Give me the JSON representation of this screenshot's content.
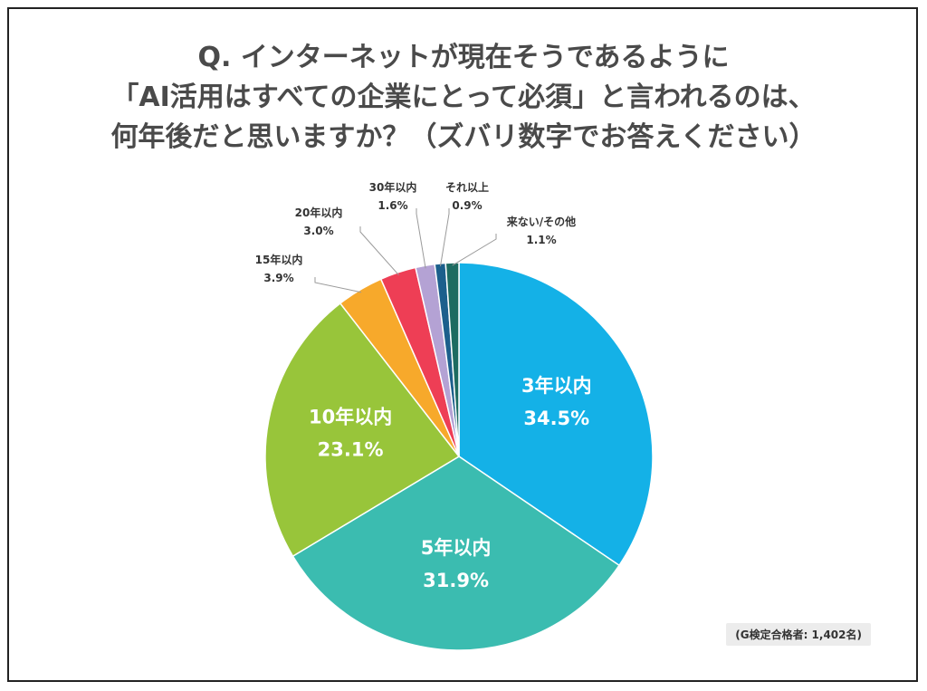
{
  "title_lines": [
    "Q. インターネットが現在そうであるように",
    "「AI活用はすべての企業にとって必須」と言われるのは、",
    "何年後だと思いますか？（ズバリ数字でお答えください）"
  ],
  "chart_data": {
    "type": "pie",
    "start_angle_deg": 0,
    "direction": "clockwise",
    "slices": [
      {
        "label": "3年以内",
        "value_text": "34.5%",
        "value": 34.5,
        "color": "#14b1e7",
        "label_inside": true
      },
      {
        "label": "5年以内",
        "value_text": "31.9%",
        "value": 31.9,
        "color": "#3bbcb0",
        "label_inside": true
      },
      {
        "label": "10年以内",
        "value_text": "23.1%",
        "value": 23.1,
        "color": "#98c53a",
        "label_inside": true
      },
      {
        "label": "15年以内",
        "value_text": "3.9%",
        "value": 3.9,
        "color": "#f7a92b",
        "label_inside": false
      },
      {
        "label": "20年以内",
        "value_text": "3.0%",
        "value": 3.0,
        "color": "#ee3e55",
        "label_inside": false
      },
      {
        "label": "30年以内",
        "value_text": "1.6%",
        "value": 1.6,
        "color": "#b4a2d4",
        "label_inside": false
      },
      {
        "label": "それ以上",
        "value_text": "0.9%",
        "value": 0.9,
        "color": "#1c5f8c",
        "label_inside": false
      },
      {
        "label": "来ない/その他",
        "value_text": "1.1%",
        "value": 1.1,
        "color": "#1d6b61",
        "label_inside": false
      }
    ]
  },
  "note": "(G検定合格者: 1,402名)"
}
